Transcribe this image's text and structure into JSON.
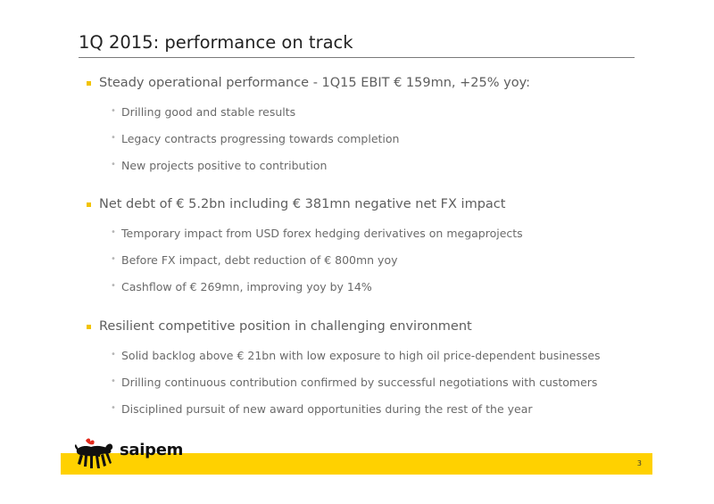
{
  "slide": {
    "title": "1Q 2015: performance on track",
    "page_number": "3"
  },
  "sections": [
    {
      "heading": "Steady operational performance - 1Q15 EBIT € 159mn, +25% yoy:",
      "items": [
        "Drilling good and stable results",
        "Legacy contracts progressing towards completion",
        "New projects positive to contribution"
      ]
    },
    {
      "heading": "Net debt of € 5.2bn including € 381mn negative net FX impact",
      "items": [
        "Temporary impact from USD forex hedging derivatives on megaprojects",
        "Before FX impact, debt reduction of € 800mn yoy",
        "Cashflow of € 269mn, improving yoy by 14%"
      ]
    },
    {
      "heading": "Resilient competitive position in challenging environment",
      "items": [
        "Solid backlog above € 21bn with low exposure to high oil price-dependent businesses",
        "Drilling continuous contribution confirmed by successful negotiations with customers",
        "Disciplined pursuit of new award opportunities during the rest of the year"
      ]
    }
  ],
  "logo": {
    "wordmark": "saipem",
    "icon": "six-legged-dog-icon"
  },
  "colors": {
    "accent_yellow": "#ffd100",
    "bullet_yellow": "#f2c300",
    "title_text": "#222222",
    "body_text": "#5e5e5e"
  }
}
